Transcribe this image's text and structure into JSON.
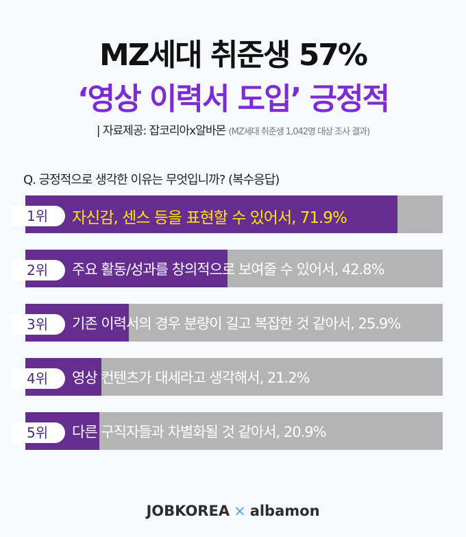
{
  "title_line1": "MZ세대 취준생 57%",
  "title_line2": "‘영상 이력서 도입’ 긍정적",
  "source": "| 자료제공: 잡코리아x알바몬",
  "source_note": "(MZ세대 취준생 1,042명 대상 조사 결과)",
  "chart_data": {
    "type": "bar",
    "title": "Q. 긍정적으로 생각한 이유는 무엇입니까? (복수응답)",
    "categories": [
      "1위",
      "2위",
      "3위",
      "4위",
      "5위"
    ],
    "labels": [
      "자신감, 센스 등을 표현할 수 있어서, 71.9%",
      "주요 활동/성과를 창의적으로 보여줄 수 있어서, 42.8%",
      "기존 이력서의 경우 분량이 길고 복잡한 것 같아서, 25.9%",
      "영상 컨텐츠가 대세라고 생각해서, 21.2%",
      "다른 구직자들과 차별화될 것 같아서, 20.9%"
    ],
    "values": [
      71.9,
      42.8,
      25.9,
      21.2,
      20.9
    ],
    "colors": {
      "fill": "#652d90",
      "track": "#b4b4b4",
      "highlight": "#ffe600"
    }
  },
  "logo": {
    "left": "JOBKOREA",
    "sep": "×",
    "right": "albamon"
  }
}
